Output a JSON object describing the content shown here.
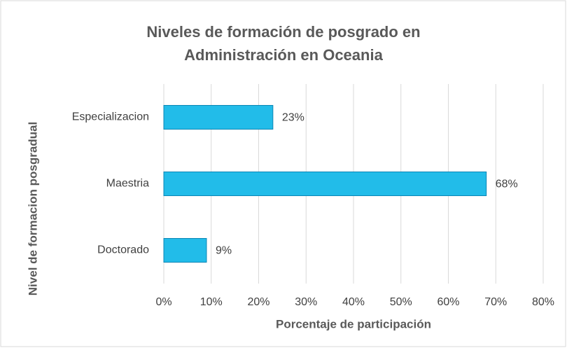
{
  "chart_data": {
    "type": "barh",
    "title": [
      "Niveles de formación de posgrado en",
      "Administración en Oceania"
    ],
    "xlabel": "Porcentaje de participación",
    "ylabel": "Nivel de formacion  posgradual",
    "categories": [
      "Especializacion",
      "Maestria",
      "Doctorado"
    ],
    "values": [
      23,
      68,
      9
    ],
    "value_labels": [
      "23%",
      "68%",
      "9%"
    ],
    "color": "#22bce9",
    "xlim": [
      0,
      80
    ],
    "xticks": [
      {
        "value": 0,
        "label": "0%"
      },
      {
        "value": 10,
        "label": "10%"
      },
      {
        "value": 20,
        "label": "20%"
      },
      {
        "value": 30,
        "label": "30%"
      },
      {
        "value": 40,
        "label": "40%"
      },
      {
        "value": 50,
        "label": "50%"
      },
      {
        "value": 60,
        "label": "60%"
      },
      {
        "value": 70,
        "label": "70%"
      },
      {
        "value": 80,
        "label": "80%"
      }
    ],
    "grid": true
  }
}
